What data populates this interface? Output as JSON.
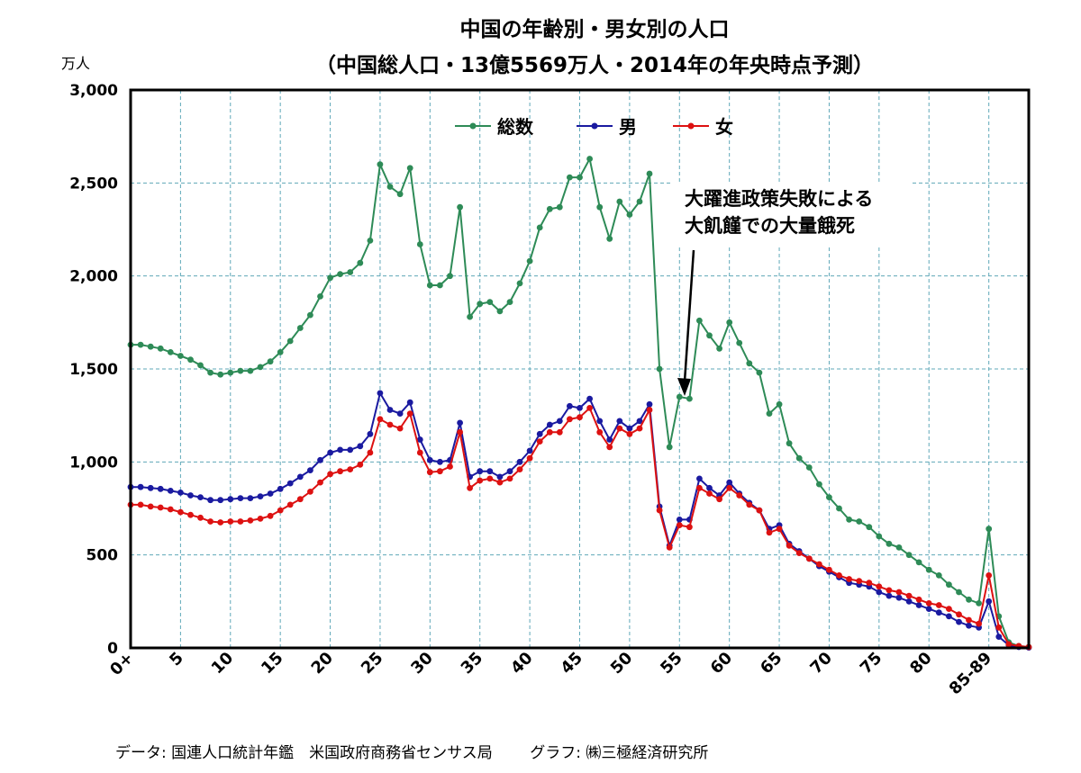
{
  "chart_data": {
    "type": "line",
    "title": "中国の年齢別・男女別の人口",
    "subtitle": "（中国総人口・13億5569万人・2014年の年央時点予測）",
    "ylabel": "万人",
    "xlabel": "",
    "ylim": [
      0,
      3000
    ],
    "xlim": [
      0,
      90
    ],
    "yticks": [
      0,
      500,
      1000,
      1500,
      2000,
      2500,
      3000
    ],
    "ytick_labels": [
      "0",
      "500",
      "1,000",
      "1,500",
      "2,000",
      "2,500",
      "3,000"
    ],
    "xticks": [
      0,
      5,
      10,
      15,
      20,
      25,
      30,
      35,
      40,
      45,
      50,
      55,
      60,
      65,
      70,
      75,
      80,
      86
    ],
    "xtick_labels": [
      "0+",
      "5",
      "10",
      "15",
      "20",
      "25",
      "30",
      "35",
      "40",
      "45",
      "50",
      "55",
      "60",
      "65",
      "70",
      "75",
      "80",
      "85-89"
    ],
    "x": [
      0,
      1,
      2,
      3,
      4,
      5,
      6,
      7,
      8,
      9,
      10,
      11,
      12,
      13,
      14,
      15,
      16,
      17,
      18,
      19,
      20,
      21,
      22,
      23,
      24,
      25,
      26,
      27,
      28,
      29,
      30,
      31,
      32,
      33,
      34,
      35,
      36,
      37,
      38,
      39,
      40,
      41,
      42,
      43,
      44,
      45,
      46,
      47,
      48,
      49,
      50,
      51,
      52,
      53,
      54,
      55,
      56,
      57,
      58,
      59,
      60,
      61,
      62,
      63,
      64,
      65,
      66,
      67,
      68,
      69,
      70,
      71,
      72,
      73,
      74,
      75,
      76,
      77,
      78,
      79,
      80,
      81,
      82,
      83,
      84,
      85,
      86,
      87,
      88,
      89,
      90
    ],
    "series": [
      {
        "name": "総数",
        "color": "#2e8b57",
        "values": [
          1630,
          1630,
          1620,
          1610,
          1590,
          1570,
          1550,
          1520,
          1480,
          1470,
          1480,
          1490,
          1490,
          1510,
          1540,
          1590,
          1650,
          1720,
          1790,
          1890,
          1990,
          2010,
          2020,
          2070,
          2190,
          2600,
          2480,
          2440,
          2580,
          2170,
          1950,
          1950,
          2000,
          2370,
          1780,
          1850,
          1860,
          1810,
          1860,
          1960,
          2080,
          2260,
          2360,
          2370,
          2530,
          2530,
          2630,
          2370,
          2200,
          2400,
          2330,
          2400,
          2550,
          1500,
          1080,
          1350,
          1340,
          1760,
          1680,
          1610,
          1750,
          1640,
          1530,
          1480,
          1260,
          1310,
          1100,
          1020,
          970,
          880,
          810,
          750,
          690,
          680,
          650,
          600,
          560,
          540,
          500,
          460,
          420,
          390,
          340,
          300,
          260,
          240,
          640,
          170,
          30,
          10,
          5
        ]
      },
      {
        "name": "男",
        "color": "#1a1aa0",
        "values": [
          865,
          865,
          860,
          855,
          845,
          835,
          820,
          810,
          795,
          795,
          800,
          805,
          805,
          815,
          830,
          855,
          885,
          920,
          955,
          1010,
          1050,
          1065,
          1065,
          1085,
          1150,
          1370,
          1280,
          1260,
          1320,
          1120,
          1010,
          1000,
          1010,
          1210,
          920,
          950,
          950,
          920,
          950,
          1000,
          1060,
          1150,
          1200,
          1220,
          1300,
          1290,
          1340,
          1220,
          1120,
          1220,
          1180,
          1220,
          1310,
          760,
          550,
          690,
          690,
          910,
          860,
          820,
          890,
          830,
          780,
          740,
          640,
          660,
          560,
          520,
          480,
          440,
          410,
          380,
          350,
          340,
          330,
          300,
          280,
          270,
          250,
          230,
          210,
          190,
          170,
          140,
          120,
          110,
          250,
          60,
          15,
          5,
          2
        ]
      },
      {
        "name": "女",
        "color": "#dd1111",
        "values": [
          770,
          770,
          760,
          755,
          745,
          730,
          715,
          700,
          680,
          675,
          680,
          680,
          685,
          695,
          710,
          740,
          770,
          800,
          840,
          890,
          935,
          950,
          960,
          985,
          1050,
          1230,
          1200,
          1180,
          1260,
          1050,
          945,
          950,
          975,
          1160,
          860,
          900,
          910,
          890,
          910,
          960,
          1020,
          1110,
          1160,
          1160,
          1230,
          1240,
          1290,
          1160,
          1080,
          1180,
          1150,
          1180,
          1280,
          740,
          540,
          660,
          650,
          860,
          830,
          800,
          860,
          820,
          770,
          740,
          620,
          640,
          550,
          510,
          480,
          450,
          420,
          390,
          370,
          360,
          350,
          330,
          310,
          300,
          280,
          260,
          240,
          230,
          210,
          180,
          150,
          130,
          390,
          110,
          20,
          10,
          5
        ]
      }
    ],
    "legend": [
      {
        "label": "総数",
        "color": "#2e8b57"
      },
      {
        "label": "男",
        "color": "#1a1aa0"
      },
      {
        "label": "女",
        "color": "#dd1111"
      }
    ],
    "legend_position": "top-center",
    "grid": true,
    "annotation": {
      "lines": [
        "大躍進政策失敗による",
        "大飢饉での大量餓死"
      ],
      "target_x": 55,
      "target_y": 1350
    }
  },
  "footer": {
    "data_source": "データ:  国連人口統計年鑑　米国政府商務省センサス局",
    "graph_credit": "グラフ:  ㈱三極経済研究所"
  }
}
